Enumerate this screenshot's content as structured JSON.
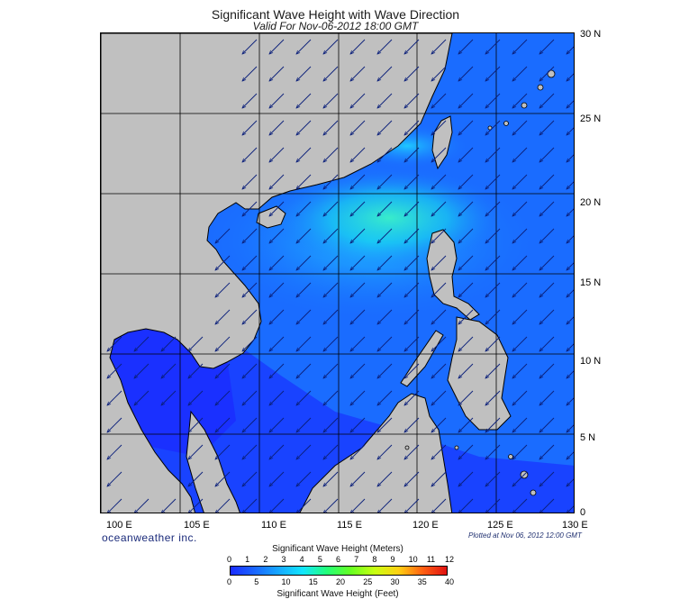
{
  "title": "Significant Wave Height with Wave Direction",
  "subtitle": "Valid For Nov-06-2012 18:00 GMT",
  "credit": "oceanweather inc.",
  "plotted": "Plotted at Nov 06, 2012 12:00 GMT",
  "map": {
    "lat_labels": [
      "30 N",
      "25 N",
      "20 N",
      "15 N",
      "10 N",
      "5 N",
      "0"
    ],
    "lon_labels": [
      "100 E",
      "105 E",
      "110 E",
      "115 E",
      "120 E",
      "125 E",
      "130 E"
    ],
    "lat_range": [
      0,
      30
    ],
    "lon_range": [
      100,
      130
    ],
    "grid": true,
    "grid_step_degrees": 5,
    "land_color": "#c0c0c0",
    "wave_direction": "southwest"
  },
  "colorbar": {
    "meters_title": "Significant Wave Height (Meters)",
    "feet_title": "Significant Wave Height (Feet)",
    "meters_ticks": [
      "0",
      "1",
      "2",
      "3",
      "4",
      "5",
      "6",
      "7",
      "8",
      "9",
      "10",
      "11",
      "12"
    ],
    "feet_ticks": [
      "0",
      "5",
      "10",
      "15",
      "20",
      "25",
      "30",
      "35",
      "40"
    ],
    "colors": [
      "#1a2cff",
      "#1a66ff",
      "#16a8ff",
      "#12e6ff",
      "#22ff7a",
      "#66ff22",
      "#c8ff12",
      "#ffd012",
      "#ff6012",
      "#e01212"
    ]
  }
}
